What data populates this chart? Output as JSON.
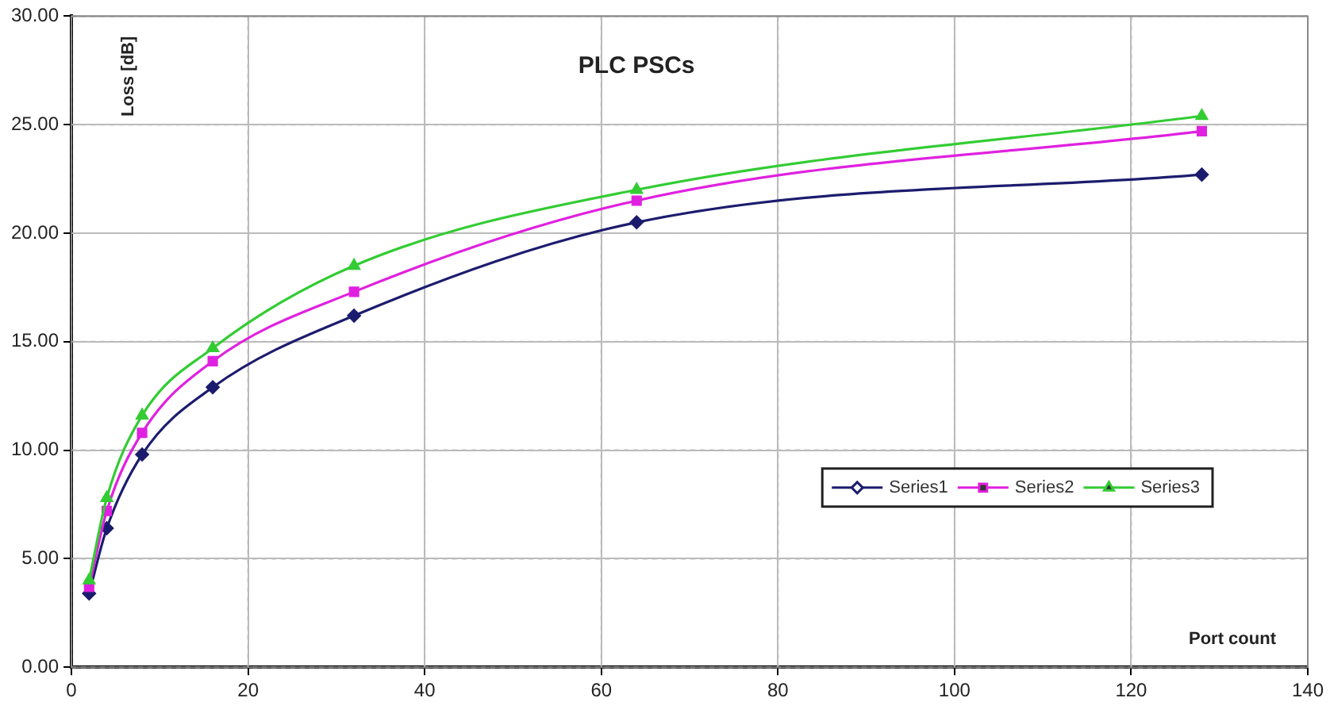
{
  "chart_data": {
    "type": "line",
    "title": "PLC PSCs",
    "xlabel": "Port count",
    "ylabel": "Loss [dB]",
    "x": [
      2,
      4,
      8,
      16,
      32,
      64,
      128
    ],
    "series": [
      {
        "name": "Series1",
        "color": "#1c1c6e",
        "marker": "diamond",
        "values": [
          3.4,
          6.4,
          9.8,
          12.9,
          16.2,
          20.5,
          22.7
        ]
      },
      {
        "name": "Series2",
        "color": "#e020e0",
        "marker": "square",
        "values": [
          3.7,
          7.2,
          10.8,
          14.1,
          17.3,
          21.5,
          24.7
        ]
      },
      {
        "name": "Series3",
        "color": "#33cc33",
        "marker": "triangle",
        "values": [
          4.0,
          7.8,
          11.6,
          14.7,
          18.5,
          22.0,
          25.4
        ]
      }
    ],
    "xlim": [
      0,
      140
    ],
    "xticks": [
      0,
      20,
      40,
      60,
      80,
      100,
      120,
      140
    ],
    "ylim": [
      0,
      30
    ],
    "yticks": [
      {
        "value": 0,
        "label": "0.00"
      },
      {
        "value": 5,
        "label": "5.00"
      },
      {
        "value": 10,
        "label": "10.00"
      },
      {
        "value": 15,
        "label": "15.00"
      },
      {
        "value": 20,
        "label": "20.00"
      },
      {
        "value": 25,
        "label": "25.00"
      },
      {
        "value": 30,
        "label": "30.00"
      }
    ],
    "grid": true,
    "legend": "bottom right",
    "line_style": "solid"
  }
}
